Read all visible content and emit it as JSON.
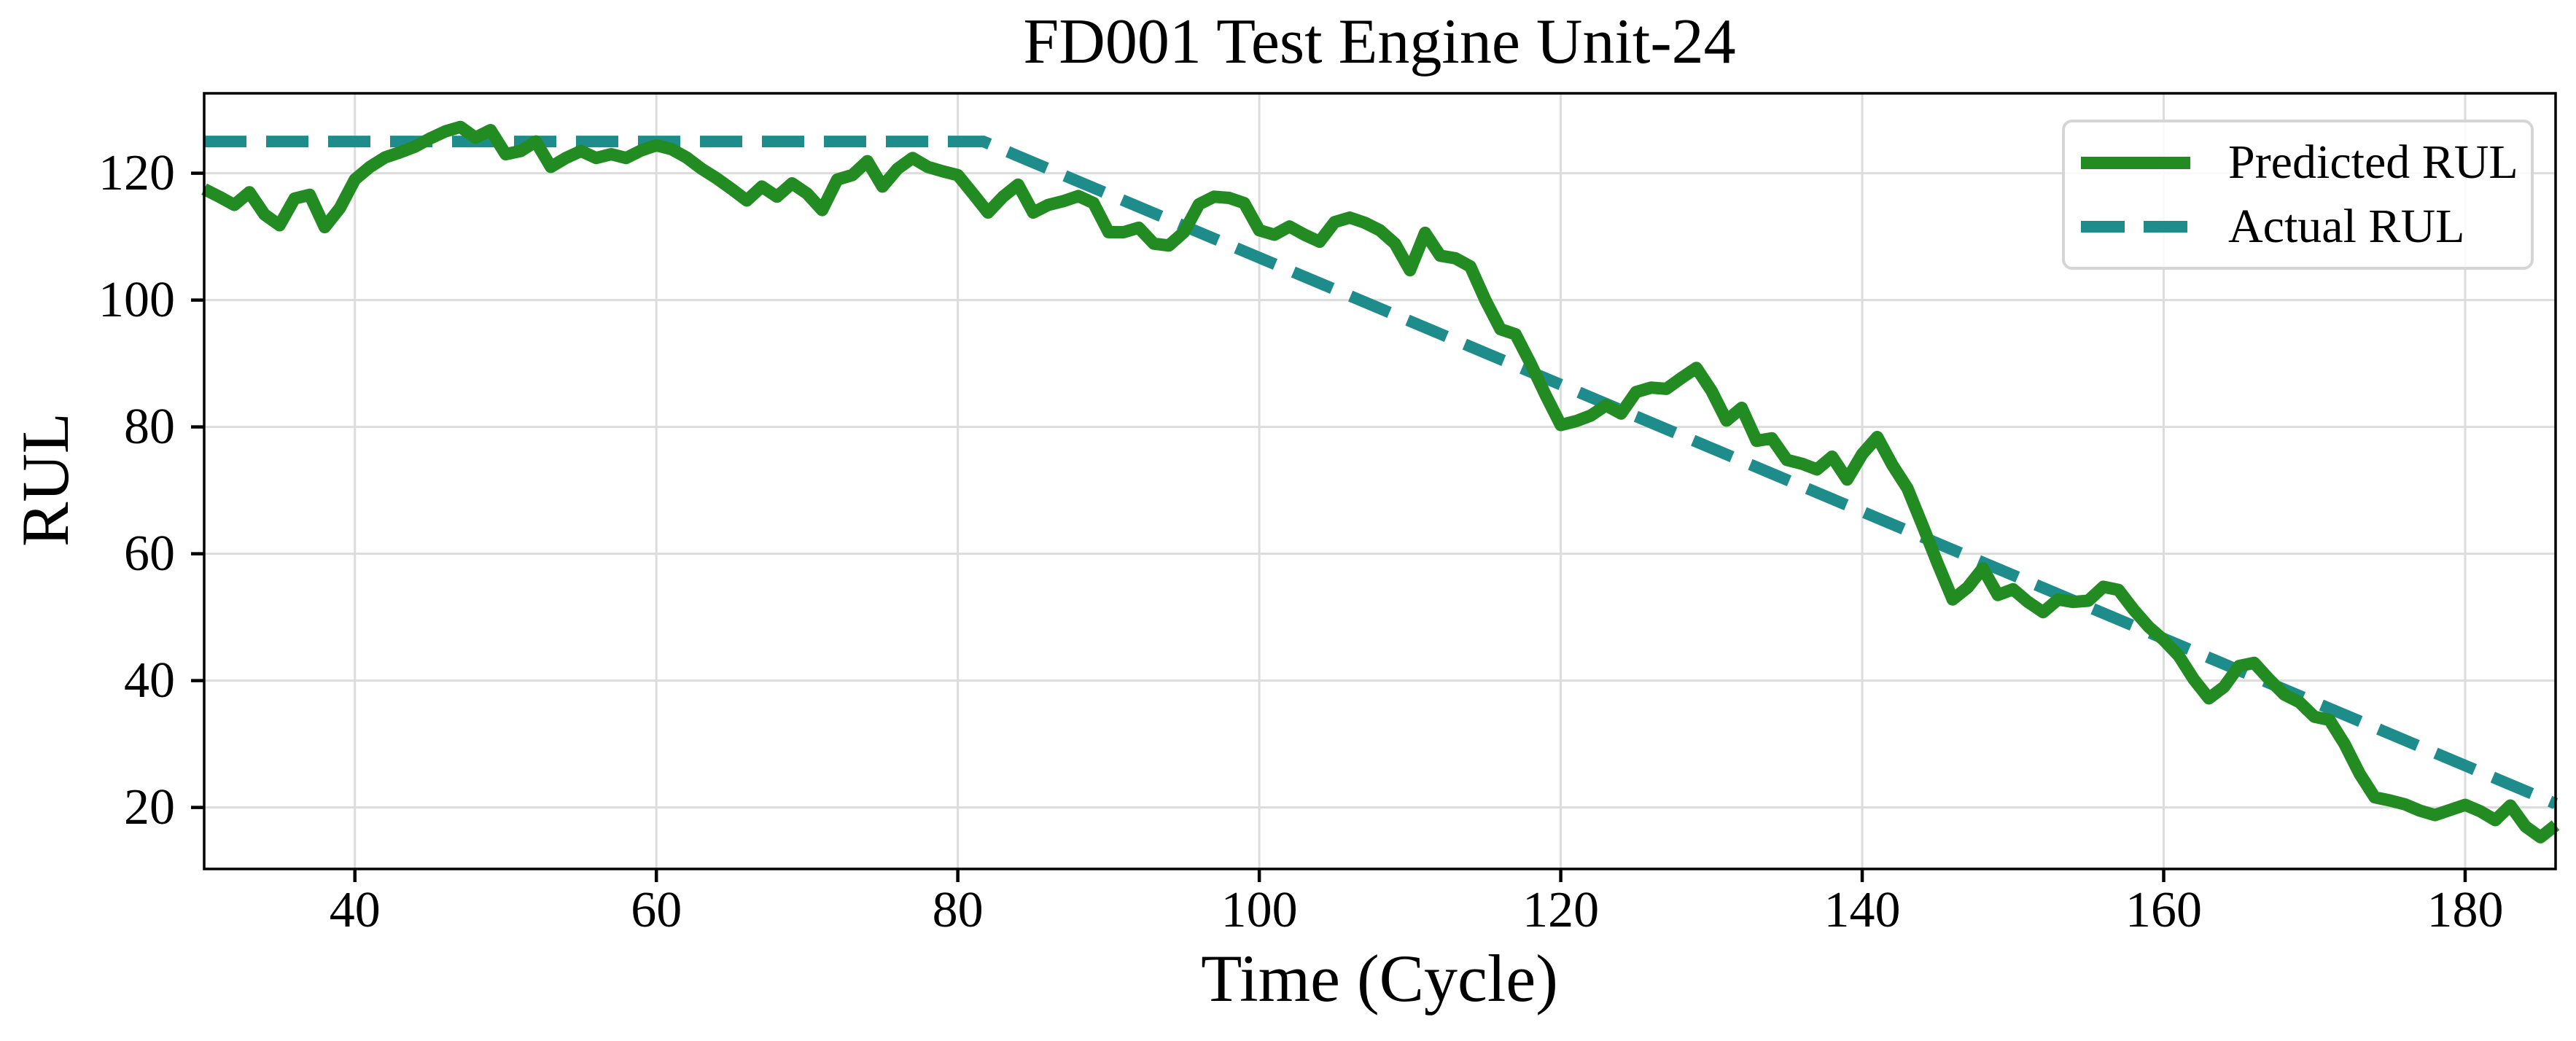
{
  "chart_data": {
    "type": "line",
    "title": "FD001 Test Engine Unit-24",
    "xlabel": "Time (Cycle)",
    "ylabel": "RUL",
    "xlim": [
      30,
      186
    ],
    "ylim": [
      10.3,
      132.6
    ],
    "x_ticks": [
      40,
      60,
      80,
      100,
      120,
      140,
      160,
      180
    ],
    "y_ticks": [
      20,
      40,
      60,
      80,
      100,
      120
    ],
    "grid": true,
    "legend_position": "upper right",
    "series": [
      {
        "name": "Predicted RUL",
        "color": "#228B22",
        "line_style": "solid",
        "x0": 30,
        "dx": 1,
        "y": [
          117.5,
          116.3,
          115.0,
          117.0,
          113.5,
          111.8,
          116.0,
          116.6,
          111.5,
          114.5,
          119.0,
          121.0,
          122.5,
          123.3,
          124.2,
          125.5,
          126.6,
          127.3,
          125.6,
          126.8,
          123.0,
          123.5,
          125.0,
          121.0,
          122.4,
          123.5,
          122.4,
          123.0,
          122.4,
          123.6,
          124.4,
          123.8,
          122.5,
          120.7,
          119.2,
          117.5,
          115.7,
          117.9,
          116.3,
          118.4,
          116.8,
          114.2,
          119.0,
          119.7,
          121.9,
          117.9,
          120.7,
          122.4,
          121.0,
          120.3,
          119.7,
          116.8,
          113.8,
          116.3,
          118.2,
          113.8,
          115.0,
          115.6,
          116.4,
          115.3,
          110.7,
          110.7,
          111.4,
          108.9,
          108.6,
          110.7,
          115.1,
          116.3,
          116.1,
          115.3,
          111.0,
          110.3,
          111.6,
          110.3,
          109.2,
          112.3,
          113.0,
          112.2,
          111.0,
          108.9,
          104.7,
          110.6,
          107.0,
          106.6,
          105.3,
          100.0,
          95.4,
          94.6,
          90.0,
          85.0,
          80.3,
          80.9,
          81.8,
          83.4,
          82.1,
          85.5,
          86.2,
          86.0,
          87.7,
          89.3,
          85.7,
          81.0,
          83.0,
          77.8,
          78.2,
          74.8,
          74.2,
          73.3,
          75.3,
          71.7,
          75.7,
          78.4,
          74.0,
          70.3,
          64.5,
          58.5,
          52.8,
          54.7,
          57.7,
          53.5,
          54.4,
          52.4,
          50.8,
          52.8,
          52.4,
          52.6,
          54.8,
          54.3,
          51.2,
          48.5,
          46.4,
          43.9,
          40.2,
          37.2,
          39.0,
          42.3,
          42.8,
          40.2,
          37.8,
          36.6,
          34.3,
          33.8,
          30.0,
          25.3,
          21.6,
          21.1,
          20.5,
          19.5,
          18.8,
          19.6,
          20.4,
          19.4,
          18.0,
          20.3,
          17.0,
          15.3,
          17.2
        ]
      },
      {
        "name": "Actual RUL",
        "color": "#1F8C8C",
        "line_style": "dashed",
        "x": [
          30,
          81.7,
          186
        ],
        "y": [
          125,
          125,
          20.6
        ]
      }
    ],
    "colors": {
      "predicted": "#228B22",
      "actual": "#1F8C8C",
      "grid": "#DCDCDC",
      "spine": "#000000",
      "legend_border": "#D5D5D5",
      "background": "#FFFFFF"
    }
  }
}
